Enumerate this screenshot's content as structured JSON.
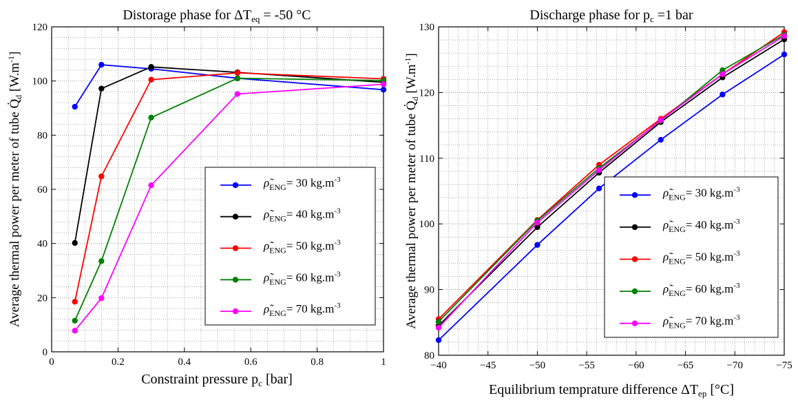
{
  "chart_data": [
    {
      "type": "line",
      "title": "Distorage phase for ΔT",
      "title_sub": "eq",
      "title_rest": " = -50 °C",
      "xlabel": "Constraint pressure p",
      "xlabel_sub": "c",
      "xlabel_rest": " [bar]",
      "ylabel": "Average thermal power per meter of tube Q̇",
      "ylabel_sub": "d",
      "ylabel_rest": " [W.m",
      "ylabel_sup": "-1",
      "ylabel_end": "]",
      "xlim": [
        0,
        1
      ],
      "ylim": [
        0,
        120
      ],
      "xticks": [
        "0",
        "0.2",
        "0.4",
        "0.6",
        "0.8",
        "1"
      ],
      "xtick_values": [
        0,
        0.2,
        0.4,
        0.6,
        0.8,
        1
      ],
      "yticks": [
        "0",
        "20",
        "40",
        "60",
        "80",
        "100",
        "120"
      ],
      "ytick_values": [
        0,
        20,
        40,
        60,
        80,
        100,
        120
      ],
      "grid": true,
      "legend_position": "center-right",
      "x": [
        0.07,
        0.15,
        0.3,
        0.56,
        1.0
      ],
      "series": [
        {
          "name": "= 30 kg.m",
          "color": "#0000ff",
          "values": [
            90.5,
            106,
            104.5,
            101,
            96.8
          ]
        },
        {
          "name": "= 40 kg.m",
          "color": "#000000",
          "values": [
            40.2,
            97.2,
            105.2,
            103.2,
            99.5
          ]
        },
        {
          "name": "= 50 kg.m",
          "color": "#ff0000",
          "values": [
            18.5,
            64.8,
            100.5,
            103,
            100.8
          ]
        },
        {
          "name": "= 60 kg.m",
          "color": "#008000",
          "values": [
            11.5,
            33.5,
            86.5,
            101,
            100.2
          ]
        },
        {
          "name": "= 70 kg.m",
          "color": "#ff00ff",
          "values": [
            7.8,
            19.8,
            61.5,
            95.2,
            98.8
          ]
        }
      ]
    },
    {
      "type": "line",
      "title": "Discharge phase for p",
      "title_sub": "c",
      "title_rest": " =1 bar",
      "xlabel": "Equilibrium temprature difference ΔT",
      "xlabel_sub": "ep",
      "xlabel_rest": " [°C]",
      "ylabel": "Average thermal power per meter of tube Q̇",
      "ylabel_sub": "d",
      "ylabel_rest": " [W.m",
      "ylabel_sup": "-1",
      "ylabel_end": "]",
      "xlim": [
        -40,
        -75
      ],
      "ylim": [
        80,
        130
      ],
      "xticks": [
        "−40",
        "−45",
        "−50",
        "−55",
        "−60",
        "−65",
        "−70",
        "−75"
      ],
      "xtick_values": [
        -40,
        -45,
        -50,
        -55,
        -60,
        -65,
        -70,
        -75
      ],
      "yticks": [
        "80",
        "90",
        "100",
        "110",
        "120",
        "130"
      ],
      "ytick_values": [
        80,
        90,
        100,
        110,
        120,
        130
      ],
      "grid": true,
      "legend_position": "bottom-right",
      "x": [
        -40,
        -50,
        -56.25,
        -62.5,
        -68.75,
        -75
      ],
      "series": [
        {
          "name": "= 30 kg.m",
          "color": "#0000ff",
          "values": [
            82.3,
            96.8,
            105.4,
            112.8,
            119.7,
            125.8
          ]
        },
        {
          "name": "= 40 kg.m",
          "color": "#000000",
          "values": [
            84.5,
            99.5,
            107.8,
            115.5,
            122.3,
            128.1
          ]
        },
        {
          "name": "= 50 kg.m",
          "color": "#ff0000",
          "values": [
            85.5,
            100.6,
            109.0,
            116.0,
            122.8,
            129.2
          ]
        },
        {
          "name": "= 60 kg.m",
          "color": "#008000",
          "values": [
            85.1,
            100.5,
            108.5,
            115.7,
            123.4,
            128.8
          ]
        },
        {
          "name": "= 70 kg.m",
          "color": "#ff00ff",
          "values": [
            84.2,
            100.2,
            108.2,
            115.8,
            122.8,
            128.6
          ]
        }
      ]
    }
  ],
  "legend_symbol": "ρ̃",
  "legend_symbol_sub": "ENG",
  "legend_values": [
    "30",
    "40",
    "50",
    "60",
    "70"
  ],
  "legend_unit_sup": "-3"
}
